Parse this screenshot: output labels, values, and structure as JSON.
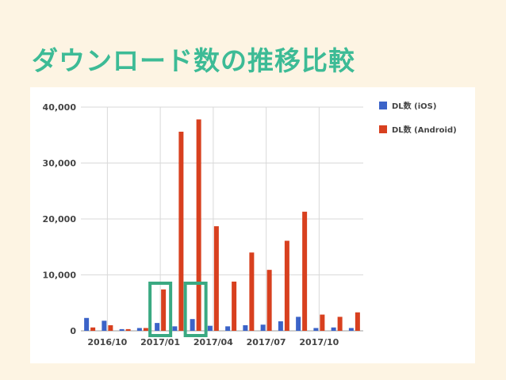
{
  "slide": {
    "title": "ダウンロード数の推移比較"
  },
  "colors": {
    "ios": "#3b63c8",
    "android": "#d8401f",
    "highlight": "#3aa982",
    "title": "#3dbb96",
    "grid": "#d9d9d9",
    "tick_text": "#444444"
  },
  "chart_data": {
    "type": "bar",
    "title": "",
    "xlabel": "",
    "ylabel": "",
    "ylim": [
      0,
      40000
    ],
    "yticks": [
      0,
      10000,
      20000,
      30000,
      40000
    ],
    "ytick_labels": [
      "0",
      "10,000",
      "20,000",
      "30,000",
      "40,000"
    ],
    "x_axis_labels": [
      "2016/10",
      "2017/01",
      "2017/04",
      "2017/07",
      "2017/10"
    ],
    "grid": true,
    "legend_position": "top-right",
    "categories": [
      "2016/09",
      "2016/10",
      "2016/11",
      "2016/12",
      "2017/01",
      "2017/02",
      "2017/03",
      "2017/04",
      "2017/05",
      "2017/06",
      "2017/07",
      "2017/08",
      "2017/09",
      "2017/10",
      "2017/11",
      "2017/12"
    ],
    "series": [
      {
        "name": "DL数 (iOS)",
        "values": [
          2300,
          1800,
          300,
          500,
          1400,
          800,
          2100,
          900,
          800,
          1000,
          1100,
          1700,
          2500,
          500,
          600,
          500
        ]
      },
      {
        "name": "DL数 (Android)",
        "values": [
          600,
          1000,
          300,
          500,
          7400,
          35600,
          37800,
          18700,
          8800,
          14000,
          10900,
          16100,
          21300,
          2900,
          2500,
          3300
        ]
      }
    ],
    "highlighted_categories": [
      "2017/01",
      "2017/03"
    ]
  }
}
